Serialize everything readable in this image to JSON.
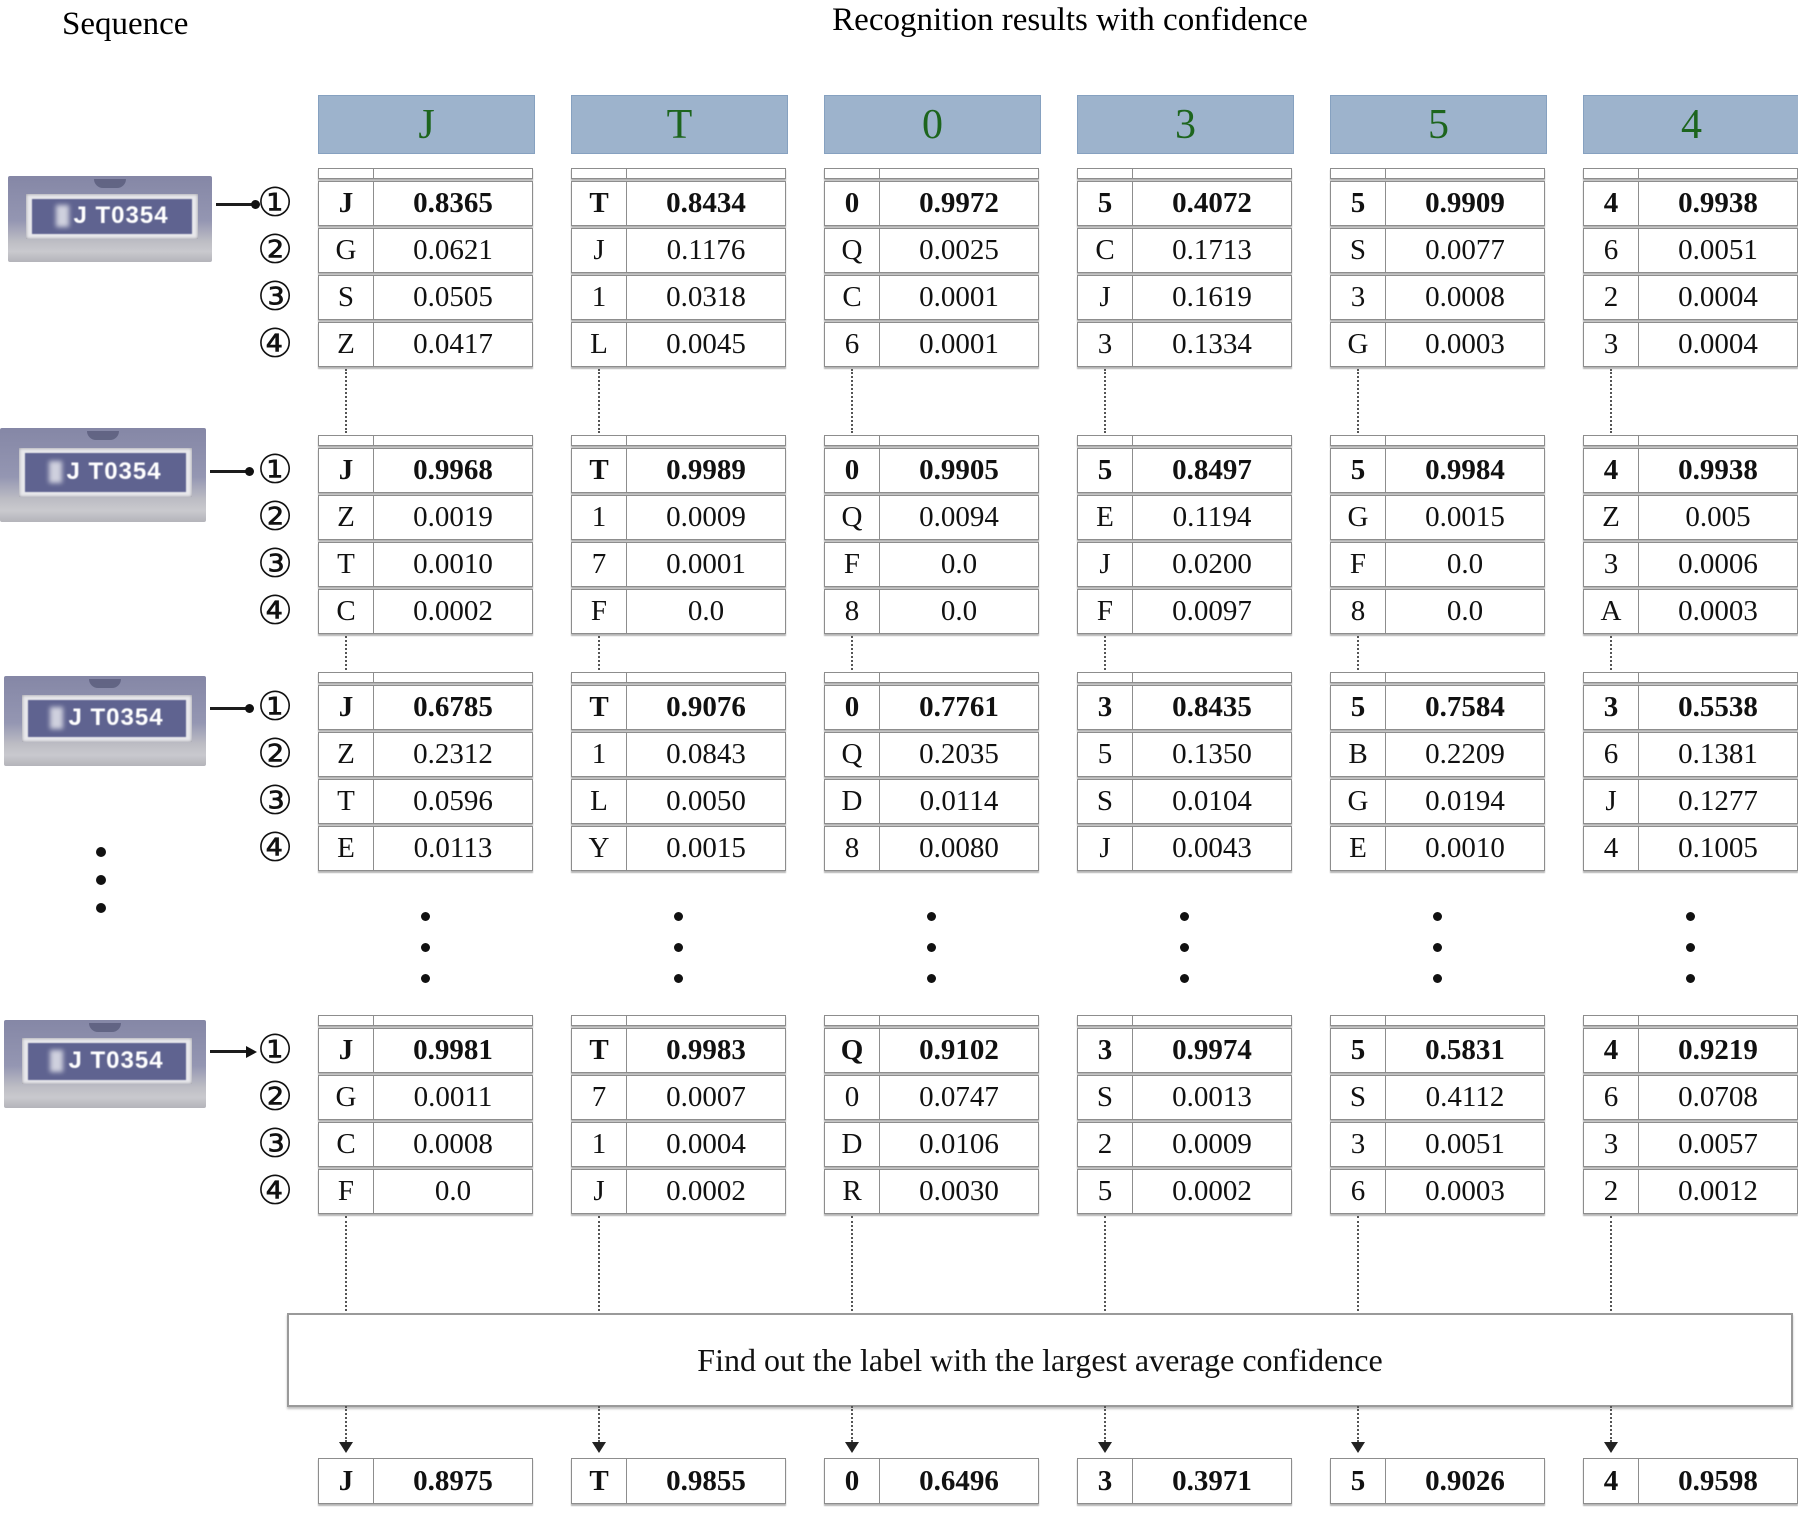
{
  "title_left": "Sequence",
  "title_right": "Recognition results with confidence",
  "box_label": "Find out the label with the largest average confidence",
  "ranks": [
    "①",
    "②",
    "③",
    "④"
  ],
  "plate_text": "J T0354",
  "colors": {
    "header_bg": "#9db3cc",
    "header_border": "#86a1c0",
    "header_text": "#1d651d",
    "plate_bg": "#5f6390",
    "plate_frame": "#e8e8ec"
  },
  "columns": [
    {
      "header": "J",
      "groups": [
        [
          [
            "J",
            "0.8365"
          ],
          [
            "G",
            "0.0621"
          ],
          [
            "S",
            "0.0505"
          ],
          [
            "Z",
            "0.0417"
          ]
        ],
        [
          [
            "J",
            "0.9968"
          ],
          [
            "Z",
            "0.0019"
          ],
          [
            "T",
            "0.0010"
          ],
          [
            "C",
            "0.0002"
          ]
        ],
        [
          [
            "J",
            "0.6785"
          ],
          [
            "Z",
            "0.2312"
          ],
          [
            "T",
            "0.0596"
          ],
          [
            "E",
            "0.0113"
          ]
        ],
        [
          [
            "J",
            "0.9981"
          ],
          [
            "G",
            "0.0011"
          ],
          [
            "C",
            "0.0008"
          ],
          [
            "F",
            "0.0"
          ]
        ]
      ],
      "final": [
        "J",
        "0.8975"
      ]
    },
    {
      "header": "T",
      "groups": [
        [
          [
            "T",
            "0.8434"
          ],
          [
            "J",
            "0.1176"
          ],
          [
            "1",
            "0.0318"
          ],
          [
            "L",
            "0.0045"
          ]
        ],
        [
          [
            "T",
            "0.9989"
          ],
          [
            "1",
            "0.0009"
          ],
          [
            "7",
            "0.0001"
          ],
          [
            "F",
            "0.0"
          ]
        ],
        [
          [
            "T",
            "0.9076"
          ],
          [
            "1",
            "0.0843"
          ],
          [
            "L",
            "0.0050"
          ],
          [
            "Y",
            "0.0015"
          ]
        ],
        [
          [
            "T",
            "0.9983"
          ],
          [
            "7",
            "0.0007"
          ],
          [
            "1",
            "0.0004"
          ],
          [
            "J",
            "0.0002"
          ]
        ]
      ],
      "final": [
        "T",
        "0.9855"
      ]
    },
    {
      "header": "0",
      "groups": [
        [
          [
            "0",
            "0.9972"
          ],
          [
            "Q",
            "0.0025"
          ],
          [
            "C",
            "0.0001"
          ],
          [
            "6",
            "0.0001"
          ]
        ],
        [
          [
            "0",
            "0.9905"
          ],
          [
            "Q",
            "0.0094"
          ],
          [
            "F",
            "0.0"
          ],
          [
            "8",
            "0.0"
          ]
        ],
        [
          [
            "0",
            "0.7761"
          ],
          [
            "Q",
            "0.2035"
          ],
          [
            "D",
            "0.0114"
          ],
          [
            "8",
            "0.0080"
          ]
        ],
        [
          [
            "Q",
            "0.9102"
          ],
          [
            "0",
            "0.0747"
          ],
          [
            "D",
            "0.0106"
          ],
          [
            "R",
            "0.0030"
          ]
        ]
      ],
      "final": [
        "0",
        "0.6496"
      ]
    },
    {
      "header": "3",
      "groups": [
        [
          [
            "5",
            "0.4072"
          ],
          [
            "C",
            "0.1713"
          ],
          [
            "J",
            "0.1619"
          ],
          [
            "3",
            "0.1334"
          ]
        ],
        [
          [
            "5",
            "0.8497"
          ],
          [
            "E",
            "0.1194"
          ],
          [
            "J",
            "0.0200"
          ],
          [
            "F",
            "0.0097"
          ]
        ],
        [
          [
            "3",
            "0.8435"
          ],
          [
            "5",
            "0.1350"
          ],
          [
            "S",
            "0.0104"
          ],
          [
            "J",
            "0.0043"
          ]
        ],
        [
          [
            "3",
            "0.9974"
          ],
          [
            "S",
            "0.0013"
          ],
          [
            "2",
            "0.0009"
          ],
          [
            "5",
            "0.0002"
          ]
        ]
      ],
      "final": [
        "3",
        "0.3971"
      ]
    },
    {
      "header": "5",
      "groups": [
        [
          [
            "5",
            "0.9909"
          ],
          [
            "S",
            "0.0077"
          ],
          [
            "3",
            "0.0008"
          ],
          [
            "G",
            "0.0003"
          ]
        ],
        [
          [
            "5",
            "0.9984"
          ],
          [
            "G",
            "0.0015"
          ],
          [
            "F",
            "0.0"
          ],
          [
            "8",
            "0.0"
          ]
        ],
        [
          [
            "5",
            "0.7584"
          ],
          [
            "B",
            "0.2209"
          ],
          [
            "G",
            "0.0194"
          ],
          [
            "E",
            "0.0010"
          ]
        ],
        [
          [
            "5",
            "0.5831"
          ],
          [
            "S",
            "0.4112"
          ],
          [
            "3",
            "0.0051"
          ],
          [
            "6",
            "0.0003"
          ]
        ]
      ],
      "final": [
        "5",
        "0.9026"
      ]
    },
    {
      "header": "4",
      "groups": [
        [
          [
            "4",
            "0.9938"
          ],
          [
            "6",
            "0.0051"
          ],
          [
            "2",
            "0.0004"
          ],
          [
            "3",
            "0.0004"
          ]
        ],
        [
          [
            "4",
            "0.9938"
          ],
          [
            "Z",
            "0.005"
          ],
          [
            "3",
            "0.0006"
          ],
          [
            "A",
            "0.0003"
          ]
        ],
        [
          [
            "3",
            "0.5538"
          ],
          [
            "6",
            "0.1381"
          ],
          [
            "J",
            "0.1277"
          ],
          [
            "4",
            "0.1005"
          ]
        ],
        [
          [
            "4",
            "0.9219"
          ],
          [
            "6",
            "0.0708"
          ],
          [
            "3",
            "0.0057"
          ],
          [
            "2",
            "0.0012"
          ]
        ]
      ],
      "final": [
        "4",
        "0.9598"
      ]
    }
  ]
}
